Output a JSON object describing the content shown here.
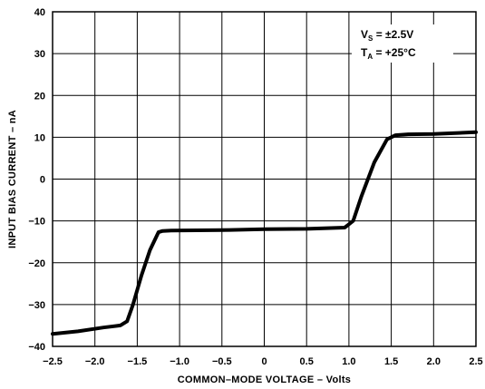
{
  "chart_data": {
    "type": "line",
    "xlabel": "COMMON-MODE VOLTAGE – Volts",
    "ylabel": "INPUT BIAS CURRENT – nA",
    "xlim": [
      -2.5,
      2.5
    ],
    "ylim": [
      -40,
      40
    ],
    "x_ticks": [
      -2.5,
      -2.0,
      -1.5,
      -1.0,
      -0.5,
      0,
      0.5,
      1.0,
      1.5,
      2.0,
      2.5
    ],
    "x_tick_labels": [
      "-2.5",
      "-2.0",
      "-1.5",
      "-1.0",
      "-0.5",
      "0",
      "0.5",
      "1.0",
      "1.5",
      "2.0",
      "2.5"
    ],
    "y_ticks": [
      40,
      30,
      20,
      10,
      0,
      -10,
      -20,
      -30,
      -40
    ],
    "y_tick_labels": [
      "40",
      "30",
      "20",
      "10",
      "0",
      "-10",
      "-20",
      "-30",
      "-40"
    ],
    "grid": true,
    "legend": "none",
    "annotation": {
      "line1_main": "V",
      "line1_sub": "S",
      "line1_rest": " = ±2.5V",
      "line2_main": "T",
      "line2_sub": "A",
      "line2_rest": " = +25°C"
    },
    "series": [
      {
        "color": "#000000",
        "x": [
          -2.5,
          -2.2,
          -1.9,
          -1.7,
          -1.62,
          -1.55,
          -1.45,
          -1.35,
          -1.25,
          -1.2,
          -1.1,
          -0.5,
          0,
          0.5,
          0.95,
          1.05,
          1.15,
          1.3,
          1.45,
          1.55,
          1.7,
          2.0,
          2.5
        ],
        "y": [
          -37,
          -36.4,
          -35.5,
          -35,
          -34,
          -30,
          -23,
          -17,
          -12.7,
          -12.4,
          -12.3,
          -12.2,
          -12.0,
          -11.9,
          -11.6,
          -10,
          -4,
          4,
          9.5,
          10.5,
          10.7,
          10.8,
          11.2
        ]
      }
    ]
  }
}
